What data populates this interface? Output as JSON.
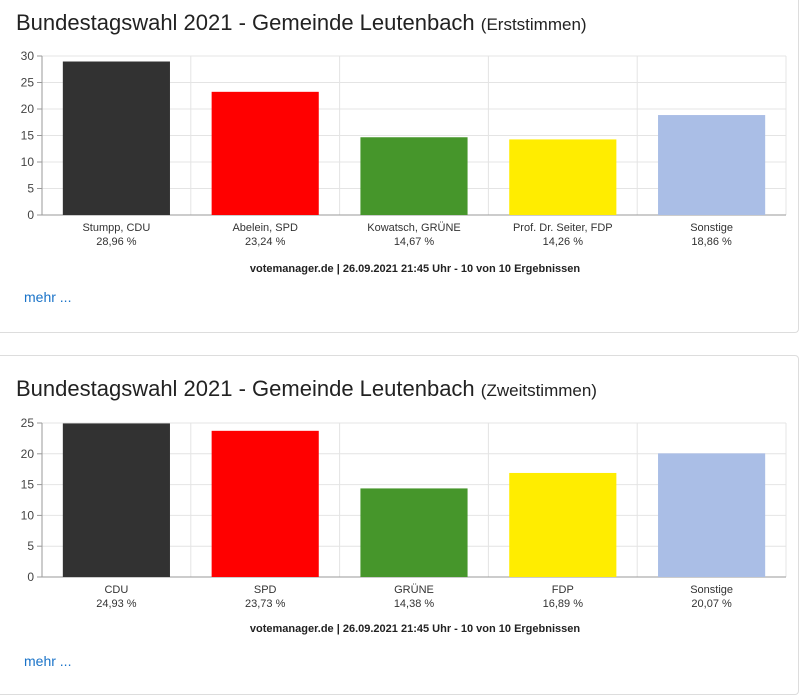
{
  "cards": [
    {
      "title_main": "Bundestagswahl 2021 - Gemeinde Leutenbach",
      "title_suffix": "(Erststimmen)",
      "link": "mehr ...",
      "source": "votemanager.de | 26.09.2021 21:45 Uhr - 10 von 10 Ergebnissen"
    },
    {
      "title_main": "Bundestagswahl 2021 - Gemeinde Leutenbach",
      "title_suffix": "(Zweitstimmen)",
      "link": "mehr ...",
      "source": "votemanager.de | 26.09.2021 21:45 Uhr - 10 von 10 Ergebnissen"
    }
  ],
  "chart_data": [
    {
      "type": "bar",
      "title": "Bundestagswahl 2021 - Gemeinde Leutenbach (Erststimmen)",
      "categories": [
        "Stumpp, CDU",
        "Abelein, SPD",
        "Kowatsch, GRÜNE",
        "Prof. Dr. Seiter, FDP",
        "Sonstige"
      ],
      "value_labels": [
        "28,96 %",
        "23,24 %",
        "14,67 %",
        "14,26 %",
        "18,86 %"
      ],
      "values": [
        28.96,
        23.24,
        14.67,
        14.26,
        18.86
      ],
      "colors": [
        "#323232",
        "#ff0000",
        "#46962b",
        "#ffed00",
        "#aabee6"
      ],
      "ylim": [
        0,
        30
      ],
      "yticks": [
        0,
        5,
        10,
        15,
        20,
        25,
        30
      ],
      "grid": true,
      "legend": "none"
    },
    {
      "type": "bar",
      "title": "Bundestagswahl 2021 - Gemeinde Leutenbach (Zweitstimmen)",
      "categories": [
        "CDU",
        "SPD",
        "GRÜNE",
        "FDP",
        "Sonstige"
      ],
      "value_labels": [
        "24,93 %",
        "23,73 %",
        "14,38 %",
        "16,89 %",
        "20,07 %"
      ],
      "values": [
        24.93,
        23.73,
        14.38,
        16.89,
        20.07
      ],
      "colors": [
        "#323232",
        "#ff0000",
        "#46962b",
        "#ffed00",
        "#aabee6"
      ],
      "ylim": [
        0,
        25
      ],
      "yticks": [
        0,
        5,
        10,
        15,
        20,
        25
      ],
      "grid": true,
      "legend": "none"
    }
  ]
}
